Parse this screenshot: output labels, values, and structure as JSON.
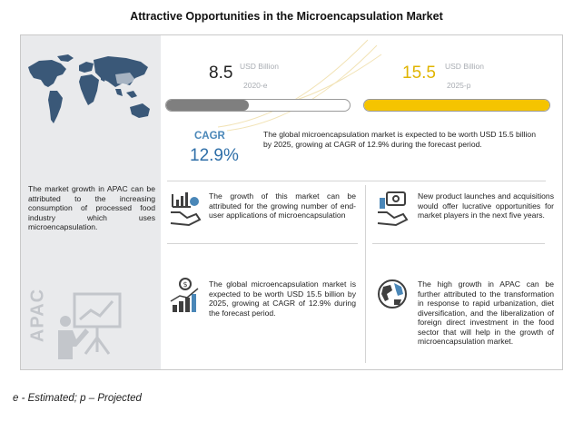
{
  "title": "Attractive Opportunities in the Microencapsulation Market",
  "stats": [
    {
      "value": "8.5",
      "unit": "USD Billion",
      "year": "2020-e",
      "fill_fraction": 0.45,
      "color": "#7f7f7f"
    },
    {
      "value": "15.5",
      "unit": "USD Billion",
      "year": "2025-p",
      "fill_fraction": 1.0,
      "color": "#f5c400"
    }
  ],
  "cagr": {
    "label": "CAGR",
    "value": "12.9%"
  },
  "summary": "The global microencapsulation market is expected to be worth USD 15.5 billion by 2025, growing at CAGR of 12.9% during the forecast period.",
  "apac_text": "The market growth in APAC can be attributed to the increasing consumption of processed food industry which uses microencapsulation.",
  "apac_label": "APAC",
  "blocks": [
    {
      "icon": "chart-hand-icon",
      "text": "The growth of this market can be attributed for the growing number of end-user applications of microencapsulation"
    },
    {
      "icon": "money-hand-icon",
      "text": "New product launches and acquisitions would offer lucrative opportunities for market players in the next five years."
    },
    {
      "icon": "growth-chart-icon",
      "text": "The global microencapsulation market is expected to be worth USD 15.5 billion by 2025, growing at CAGR of 12.9% during the forecast period."
    },
    {
      "icon": "globe-icon",
      "text": "The high growth in APAC can be further attributed to the transformation in response to rapid urbanization, diet diversification, and the liberalization of foreign direct investment in the food sector that will help in the growth of microencapsulation market."
    }
  ],
  "footnote": "e - Estimated; p – Projected",
  "chart_data": {
    "type": "bar",
    "title": "Attractive Opportunities in the Microencapsulation Market",
    "categories": [
      "2020-e",
      "2025-p"
    ],
    "values": [
      8.5,
      15.5
    ],
    "ylabel": "USD Billion",
    "cagr": "12.9%"
  }
}
